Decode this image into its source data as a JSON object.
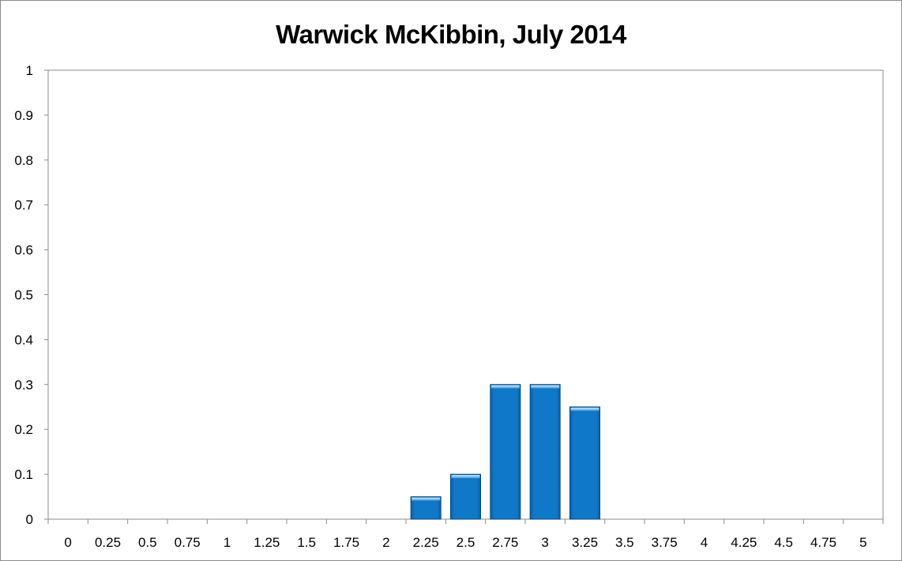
{
  "chart_data": {
    "type": "bar",
    "title": "Warwick McKibbin, July 2014",
    "xlabel": "",
    "ylabel": "",
    "categories": [
      "0",
      "0.25",
      "0.5",
      "0.75",
      "1",
      "1.25",
      "1.5",
      "1.75",
      "2",
      "2.25",
      "2.5",
      "2.75",
      "3",
      "3.25",
      "3.5",
      "3.75",
      "4",
      "4.25",
      "4.5",
      "4.75",
      "5"
    ],
    "values": [
      0,
      0,
      0,
      0,
      0,
      0,
      0,
      0,
      0,
      0.05,
      0.1,
      0.3,
      0.3,
      0.25,
      0,
      0,
      0,
      0,
      0,
      0,
      0
    ],
    "ylim": [
      0,
      1
    ],
    "yticks": [
      "0",
      "0.1",
      "0.2",
      "0.3",
      "0.4",
      "0.5",
      "0.6",
      "0.7",
      "0.8",
      "0.9",
      "1"
    ],
    "grid": false,
    "legend": "none",
    "bar_color": "#0070C0"
  }
}
